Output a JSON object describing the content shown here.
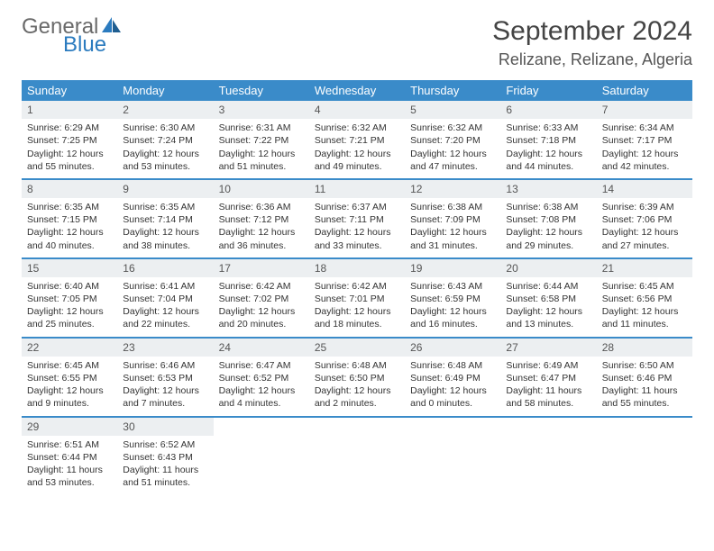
{
  "logo": {
    "word1": "General",
    "word2": "Blue"
  },
  "title": "September 2024",
  "location": "Relizane, Relizane, Algeria",
  "colors": {
    "header_bg": "#3a8bc9",
    "header_text": "#ffffff",
    "daynum_bg": "#eceff1",
    "rule": "#3a8bc9",
    "logo_grey": "#6a6a6a",
    "logo_blue": "#2b7bbf"
  },
  "day_names": [
    "Sunday",
    "Monday",
    "Tuesday",
    "Wednesday",
    "Thursday",
    "Friday",
    "Saturday"
  ],
  "weeks": [
    [
      {
        "n": "1",
        "sr": "Sunrise: 6:29 AM",
        "ss": "Sunset: 7:25 PM",
        "dl": "Daylight: 12 hours and 55 minutes."
      },
      {
        "n": "2",
        "sr": "Sunrise: 6:30 AM",
        "ss": "Sunset: 7:24 PM",
        "dl": "Daylight: 12 hours and 53 minutes."
      },
      {
        "n": "3",
        "sr": "Sunrise: 6:31 AM",
        "ss": "Sunset: 7:22 PM",
        "dl": "Daylight: 12 hours and 51 minutes."
      },
      {
        "n": "4",
        "sr": "Sunrise: 6:32 AM",
        "ss": "Sunset: 7:21 PM",
        "dl": "Daylight: 12 hours and 49 minutes."
      },
      {
        "n": "5",
        "sr": "Sunrise: 6:32 AM",
        "ss": "Sunset: 7:20 PM",
        "dl": "Daylight: 12 hours and 47 minutes."
      },
      {
        "n": "6",
        "sr": "Sunrise: 6:33 AM",
        "ss": "Sunset: 7:18 PM",
        "dl": "Daylight: 12 hours and 44 minutes."
      },
      {
        "n": "7",
        "sr": "Sunrise: 6:34 AM",
        "ss": "Sunset: 7:17 PM",
        "dl": "Daylight: 12 hours and 42 minutes."
      }
    ],
    [
      {
        "n": "8",
        "sr": "Sunrise: 6:35 AM",
        "ss": "Sunset: 7:15 PM",
        "dl": "Daylight: 12 hours and 40 minutes."
      },
      {
        "n": "9",
        "sr": "Sunrise: 6:35 AM",
        "ss": "Sunset: 7:14 PM",
        "dl": "Daylight: 12 hours and 38 minutes."
      },
      {
        "n": "10",
        "sr": "Sunrise: 6:36 AM",
        "ss": "Sunset: 7:12 PM",
        "dl": "Daylight: 12 hours and 36 minutes."
      },
      {
        "n": "11",
        "sr": "Sunrise: 6:37 AM",
        "ss": "Sunset: 7:11 PM",
        "dl": "Daylight: 12 hours and 33 minutes."
      },
      {
        "n": "12",
        "sr": "Sunrise: 6:38 AM",
        "ss": "Sunset: 7:09 PM",
        "dl": "Daylight: 12 hours and 31 minutes."
      },
      {
        "n": "13",
        "sr": "Sunrise: 6:38 AM",
        "ss": "Sunset: 7:08 PM",
        "dl": "Daylight: 12 hours and 29 minutes."
      },
      {
        "n": "14",
        "sr": "Sunrise: 6:39 AM",
        "ss": "Sunset: 7:06 PM",
        "dl": "Daylight: 12 hours and 27 minutes."
      }
    ],
    [
      {
        "n": "15",
        "sr": "Sunrise: 6:40 AM",
        "ss": "Sunset: 7:05 PM",
        "dl": "Daylight: 12 hours and 25 minutes."
      },
      {
        "n": "16",
        "sr": "Sunrise: 6:41 AM",
        "ss": "Sunset: 7:04 PM",
        "dl": "Daylight: 12 hours and 22 minutes."
      },
      {
        "n": "17",
        "sr": "Sunrise: 6:42 AM",
        "ss": "Sunset: 7:02 PM",
        "dl": "Daylight: 12 hours and 20 minutes."
      },
      {
        "n": "18",
        "sr": "Sunrise: 6:42 AM",
        "ss": "Sunset: 7:01 PM",
        "dl": "Daylight: 12 hours and 18 minutes."
      },
      {
        "n": "19",
        "sr": "Sunrise: 6:43 AM",
        "ss": "Sunset: 6:59 PM",
        "dl": "Daylight: 12 hours and 16 minutes."
      },
      {
        "n": "20",
        "sr": "Sunrise: 6:44 AM",
        "ss": "Sunset: 6:58 PM",
        "dl": "Daylight: 12 hours and 13 minutes."
      },
      {
        "n": "21",
        "sr": "Sunrise: 6:45 AM",
        "ss": "Sunset: 6:56 PM",
        "dl": "Daylight: 12 hours and 11 minutes."
      }
    ],
    [
      {
        "n": "22",
        "sr": "Sunrise: 6:45 AM",
        "ss": "Sunset: 6:55 PM",
        "dl": "Daylight: 12 hours and 9 minutes."
      },
      {
        "n": "23",
        "sr": "Sunrise: 6:46 AM",
        "ss": "Sunset: 6:53 PM",
        "dl": "Daylight: 12 hours and 7 minutes."
      },
      {
        "n": "24",
        "sr": "Sunrise: 6:47 AM",
        "ss": "Sunset: 6:52 PM",
        "dl": "Daylight: 12 hours and 4 minutes."
      },
      {
        "n": "25",
        "sr": "Sunrise: 6:48 AM",
        "ss": "Sunset: 6:50 PM",
        "dl": "Daylight: 12 hours and 2 minutes."
      },
      {
        "n": "26",
        "sr": "Sunrise: 6:48 AM",
        "ss": "Sunset: 6:49 PM",
        "dl": "Daylight: 12 hours and 0 minutes."
      },
      {
        "n": "27",
        "sr": "Sunrise: 6:49 AM",
        "ss": "Sunset: 6:47 PM",
        "dl": "Daylight: 11 hours and 58 minutes."
      },
      {
        "n": "28",
        "sr": "Sunrise: 6:50 AM",
        "ss": "Sunset: 6:46 PM",
        "dl": "Daylight: 11 hours and 55 minutes."
      }
    ],
    [
      {
        "n": "29",
        "sr": "Sunrise: 6:51 AM",
        "ss": "Sunset: 6:44 PM",
        "dl": "Daylight: 11 hours and 53 minutes."
      },
      {
        "n": "30",
        "sr": "Sunrise: 6:52 AM",
        "ss": "Sunset: 6:43 PM",
        "dl": "Daylight: 11 hours and 51 minutes."
      },
      {
        "empty": true
      },
      {
        "empty": true
      },
      {
        "empty": true
      },
      {
        "empty": true
      },
      {
        "empty": true
      }
    ]
  ]
}
